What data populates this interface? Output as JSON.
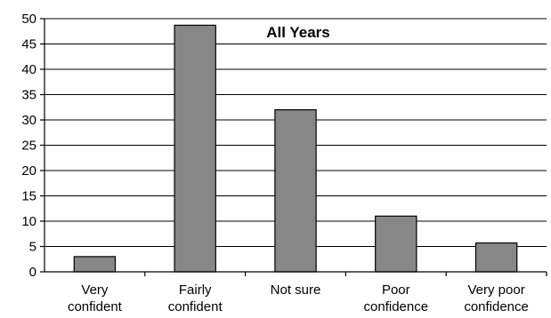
{
  "chart_data": {
    "type": "bar",
    "title": "All Years",
    "categories": [
      [
        "Very",
        "confident"
      ],
      [
        "Fairly",
        "confident"
      ],
      [
        "Not sure"
      ],
      [
        "Poor",
        "confidence"
      ],
      [
        "Very poor",
        "confidence"
      ]
    ],
    "values": [
      3,
      48.7,
      32,
      11,
      5.7
    ],
    "ylim": [
      0,
      50
    ],
    "yticks": [
      0,
      5,
      10,
      15,
      20,
      25,
      30,
      35,
      40,
      45,
      50
    ],
    "grid": true,
    "bar_color": "#878787"
  }
}
